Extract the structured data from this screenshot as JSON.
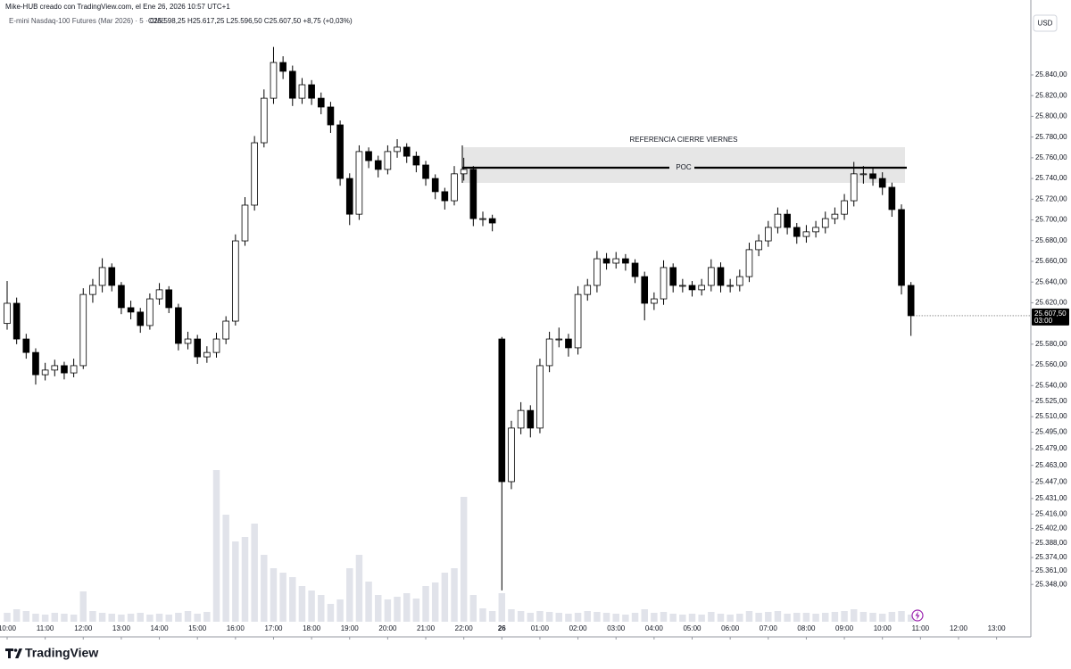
{
  "chart_data": {
    "type": "candlestick",
    "credit": "Mike-HUB creado con TradingView.com, el Ene 26, 2026 10:57 UTC+1",
    "title": "E-mini Nasdaq-100 Futures (Mar 2026) · 5 · CME",
    "ohlc_legend": "O25.598,25  H25.617,25  L25.596,50  C25.607,50  +8,75 (+0,03%)",
    "currency": "USD",
    "brand": "TradingView",
    "annotations": [
      "REFERENCIA CIERRE VIERNES",
      "POC"
    ],
    "price_marker": {
      "value": 25607.5,
      "label": "25.607,50",
      "countdown": "03:00"
    },
    "up_color": "#ffffff",
    "down_color": "#000000",
    "volume_color": "#e1e3ea",
    "grid": false,
    "xlim": [
      -0.75,
      107.6
    ],
    "xticks": [
      {
        "value": 0,
        "label": "10:00"
      },
      {
        "value": 4,
        "label": "11:00"
      },
      {
        "value": 8,
        "label": "12:00"
      },
      {
        "value": 12,
        "label": "13:00"
      },
      {
        "value": 16,
        "label": "14:00"
      },
      {
        "value": 20,
        "label": "15:00"
      },
      {
        "value": 24,
        "label": "16:00"
      },
      {
        "value": 28,
        "label": "17:00"
      },
      {
        "value": 32,
        "label": "18:00"
      },
      {
        "value": 36,
        "label": "19:00"
      },
      {
        "value": 40,
        "label": "20:00"
      },
      {
        "value": 44,
        "label": "21:00"
      },
      {
        "value": 48,
        "label": "22:00"
      },
      {
        "value": 52,
        "label": "26"
      },
      {
        "value": 56,
        "label": "01:00"
      },
      {
        "value": 60,
        "label": "02:00"
      },
      {
        "value": 64,
        "label": "03:00"
      },
      {
        "value": 68,
        "label": "04:00"
      },
      {
        "value": 72,
        "label": "05:00"
      },
      {
        "value": 76,
        "label": "06:00"
      },
      {
        "value": 80,
        "label": "07:00"
      },
      {
        "value": 84,
        "label": "08:00"
      },
      {
        "value": 88,
        "label": "09:00"
      },
      {
        "value": 92,
        "label": "10:00"
      },
      {
        "value": 96,
        "label": "11:00"
      },
      {
        "value": 100,
        "label": "12:00"
      },
      {
        "value": 104,
        "label": "13:00"
      }
    ],
    "ylim": [
      25312,
      25886.5
    ],
    "yticks": [
      {
        "value": 25840,
        "label": "25.840,00"
      },
      {
        "value": 25820,
        "label": "25.820,00"
      },
      {
        "value": 25800,
        "label": "25.800,00"
      },
      {
        "value": 25780,
        "label": "25.780,00"
      },
      {
        "value": 25760,
        "label": "25.760,00"
      },
      {
        "value": 25740,
        "label": "25.740,00"
      },
      {
        "value": 25720,
        "label": "25.720,00"
      },
      {
        "value": 25700,
        "label": "25.700,00"
      },
      {
        "value": 25680,
        "label": "25.680,00"
      },
      {
        "value": 25660,
        "label": "25.660,00"
      },
      {
        "value": 25640,
        "label": "25.640,00"
      },
      {
        "value": 25620,
        "label": "25.620,00"
      },
      {
        "value": 25580,
        "label": "25.580,00"
      },
      {
        "value": 25560,
        "label": "25.560,00"
      },
      {
        "value": 25540,
        "label": "25.540,00"
      },
      {
        "value": 25525,
        "label": "25.525,00"
      },
      {
        "value": 25510,
        "label": "25.510,00"
      },
      {
        "value": 25495,
        "label": "25.495,00"
      },
      {
        "value": 25479,
        "label": "25.479,00"
      },
      {
        "value": 25463,
        "label": "25.463,00"
      },
      {
        "value": 25447,
        "label": "25.447,00"
      },
      {
        "value": 25431,
        "label": "25.431,00"
      },
      {
        "value": 25416,
        "label": "25.416,00"
      },
      {
        "value": 25402,
        "label": "25.402,00"
      },
      {
        "value": 25388,
        "label": "25.388,00"
      },
      {
        "value": 25374,
        "label": "25.374,00"
      },
      {
        "value": 25361,
        "label": "25.361,00"
      },
      {
        "value": 25348,
        "label": "25.348,00"
      }
    ],
    "open": [
      25600,
      25619.5,
      25585,
      25572,
      25550.5,
      25555,
      25559.25,
      25552.25,
      25559.25,
      25628,
      25636.75,
      25654,
      25636.75,
      25615.25,
      25611,
      25598,
      25623.75,
      25632.5,
      25615.25,
      25580.75,
      25585,
      25567.75,
      25572,
      25585,
      25602.25,
      25679.75,
      25714.25,
      25774.5,
      25817.5,
      25852,
      25843.5,
      25817.5,
      25830.5,
      25817.5,
      25809,
      25791.75,
      25740,
      25705.5,
      25766,
      25757.25,
      25748.75,
      25766,
      25770.25,
      25761.5,
      25753,
      25740,
      25727.25,
      25718.5,
      25744.5,
      25748.75,
      25701.25,
      25701.25,
      25585,
      25447.25,
      25499,
      25516,
      25499,
      25559.25,
      25585,
      25585,
      25576.5,
      25628,
      25636.75,
      25662.5,
      25658.25,
      25662.5,
      25658.25,
      25645.25,
      25619.5,
      25623.75,
      25654,
      25636.75,
      25636.75,
      25632.5,
      25636.75,
      25654,
      25636.75,
      25636.75,
      25645.25,
      25671.25,
      25679.75,
      25692.75,
      25705.5,
      25692.75,
      25684,
      25688.5,
      25692.75,
      25701.25,
      25705.5,
      25718.5,
      25744.5,
      25744.5,
      25740,
      25731.5,
      25710,
      25636.75
    ],
    "high": [
      25641,
      25625,
      25590,
      25576,
      25562,
      25565,
      25563,
      25566,
      25634,
      25643,
      25663,
      25658,
      25640,
      25622,
      25615,
      25629,
      25639,
      25636,
      25619,
      25592,
      25589,
      25578,
      25591,
      25607,
      25686,
      25722,
      25781,
      25826,
      25867,
      25858,
      25849,
      25837,
      25835,
      25823,
      25814,
      25796,
      25745,
      25772,
      25770,
      25762,
      25772,
      25778,
      25774,
      25766,
      25757,
      25744,
      25731,
      25752,
      25760,
      25752,
      25708,
      25705,
      25587,
      25506,
      25524,
      25521,
      25566,
      25592,
      25596,
      25590,
      25636,
      25643,
      25670,
      25668,
      25669,
      25667,
      25662,
      25650,
      25630,
      25661,
      25658,
      25643,
      25641,
      25643,
      25662,
      25659,
      25643,
      25652,
      25678,
      25686,
      25699,
      25712,
      25710,
      25697,
      25695,
      25699,
      25708,
      25712,
      25725,
      25756,
      25752,
      25750,
      25746,
      25736,
      25715,
      25640
    ],
    "low": [
      25594,
      25580,
      25566,
      25541,
      25545,
      25549,
      25546,
      25548,
      25556,
      25620,
      25630,
      25631,
      25609,
      25604,
      25591,
      25594,
      25618,
      25610,
      25574,
      25575,
      25561,
      25562,
      25567,
      25580,
      25598,
      25675,
      25709,
      25770,
      25812,
      25836,
      25810,
      25812,
      25811,
      25802,
      25784,
      25733,
      25695,
      25700,
      25750,
      25741,
      25744,
      25760,
      25755,
      25746,
      25733,
      25720,
      25710,
      25714,
      25738,
      25694,
      25694,
      25689,
      25342.25,
      25440,
      25493,
      25490,
      25494,
      25553,
      25577,
      25568,
      25570,
      25622,
      25630,
      25652,
      25653,
      25651,
      25639,
      25603,
      25613,
      25618,
      25630,
      25630,
      25626,
      25627,
      25631,
      25630,
      25630,
      25631,
      25640,
      25665,
      25674,
      25687,
      25686,
      25677,
      25678,
      25683,
      25687,
      25696,
      25700,
      25713,
      25735,
      25733,
      25724,
      25703,
      25628,
      25588
    ],
    "close": [
      25619.5,
      25585,
      25572,
      25550.5,
      25555,
      25559.25,
      25552.25,
      25559.25,
      25628,
      25636.75,
      25654,
      25636.75,
      25615.25,
      25611,
      25598,
      25623.75,
      25632.5,
      25615.25,
      25580.75,
      25585,
      25567.75,
      25572,
      25585,
      25602.25,
      25679.75,
      25714.25,
      25774.5,
      25817.5,
      25852,
      25843.5,
      25817.5,
      25830.5,
      25817.5,
      25809,
      25791.75,
      25740,
      25705.5,
      25766,
      25757.25,
      25748.75,
      25766,
      25770.25,
      25761.5,
      25753,
      25740,
      25727.25,
      25718.5,
      25744.5,
      25748.75,
      25701.25,
      25701.25,
      25697,
      25447.25,
      25499,
      25516,
      25499,
      25559.25,
      25585,
      25585,
      25576.5,
      25628,
      25636.75,
      25662.5,
      25658.25,
      25662.5,
      25658.25,
      25645.25,
      25619.5,
      25623.75,
      25654,
      25636.75,
      25636.75,
      25632.5,
      25636.75,
      25654,
      25636.75,
      25636.75,
      25645.25,
      25671.25,
      25679.75,
      25692.75,
      25705.5,
      25692.75,
      25684,
      25688.5,
      25692.75,
      25701.25,
      25705.5,
      25718.5,
      25744.5,
      25744.5,
      25740,
      25731.5,
      25710,
      25636.75,
      25607.5
    ],
    "volume": [
      10,
      14,
      12,
      9,
      8,
      10,
      9,
      8,
      34,
      12,
      10,
      9,
      8,
      9,
      10,
      8,
      9,
      8,
      10,
      12,
      9,
      11,
      170,
      120,
      90,
      95,
      110,
      75,
      60,
      55,
      50,
      40,
      35,
      30,
      20,
      25,
      60,
      75,
      45,
      30,
      25,
      28,
      32,
      26,
      40,
      44,
      55,
      60,
      140,
      30,
      15,
      12,
      32,
      14,
      12,
      10,
      12,
      11,
      10,
      9,
      10,
      12,
      11,
      10,
      9,
      8,
      10,
      14,
      10,
      11,
      9,
      8,
      9,
      8,
      11,
      9,
      8,
      9,
      12,
      10,
      11,
      12,
      9,
      10,
      10,
      9,
      10,
      11,
      12,
      14,
      11,
      10,
      9,
      11,
      12,
      8
    ]
  }
}
